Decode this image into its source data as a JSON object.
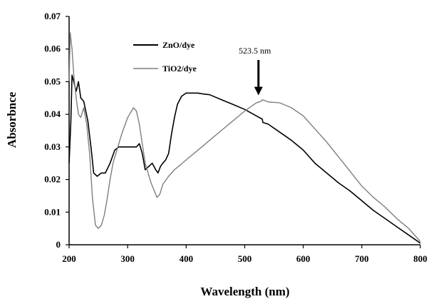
{
  "chart_data": {
    "type": "line",
    "xlabel": "Wavelength (nm)",
    "ylabel": "Absorbnce",
    "xlim": [
      200,
      800
    ],
    "ylim": [
      0,
      0.07
    ],
    "xticks": [
      "200",
      "300",
      "400",
      "500",
      "600",
      "700",
      "800"
    ],
    "yticks": [
      "0",
      "0.01",
      "0.02",
      "0.03",
      "0.04",
      "0.05",
      "0.06",
      "0.07"
    ],
    "grid": false,
    "legend_position": "top-center",
    "series": [
      {
        "name": "ZnO/dye",
        "color": "#000000",
        "x": [
          200,
          203,
          205,
          208,
          212,
          216,
          220,
          225,
          232,
          238,
          242,
          248,
          255,
          262,
          270,
          278,
          285,
          292,
          300,
          308,
          315,
          320,
          325,
          330,
          336,
          342,
          348,
          352,
          356,
          360,
          365,
          370,
          375,
          380,
          385,
          392,
          400,
          410,
          420,
          430,
          440,
          460,
          480,
          500,
          520,
          530,
          531,
          540,
          560,
          580,
          600,
          620,
          640,
          660,
          680,
          700,
          720,
          740,
          760,
          780,
          800
        ],
        "y": [
          0.025,
          0.038,
          0.052,
          0.05,
          0.047,
          0.05,
          0.045,
          0.044,
          0.038,
          0.029,
          0.022,
          0.021,
          0.022,
          0.022,
          0.025,
          0.029,
          0.03,
          0.03,
          0.03,
          0.03,
          0.03,
          0.031,
          0.028,
          0.023,
          0.024,
          0.025,
          0.023,
          0.022,
          0.024,
          0.025,
          0.026,
          0.028,
          0.034,
          0.039,
          0.043,
          0.0455,
          0.0465,
          0.0465,
          0.0465,
          0.0462,
          0.046,
          0.0445,
          0.043,
          0.0415,
          0.0395,
          0.0385,
          0.0375,
          0.037,
          0.0345,
          0.032,
          0.029,
          0.025,
          0.022,
          0.019,
          0.0165,
          0.0135,
          0.0105,
          0.008,
          0.0055,
          0.003,
          0.0005
        ]
      },
      {
        "name": "TiO2/dye",
        "color": "#7f7f7f",
        "x": [
          200,
          202,
          205,
          208,
          212,
          216,
          220,
          225,
          230,
          235,
          240,
          245,
          250,
          255,
          260,
          265,
          270,
          275,
          280,
          290,
          300,
          310,
          315,
          320,
          325,
          330,
          340,
          350,
          355,
          360,
          370,
          380,
          400,
          420,
          440,
          460,
          480,
          500,
          520,
          528,
          530,
          540,
          560,
          580,
          600,
          620,
          640,
          660,
          680,
          700,
          720,
          740,
          760,
          780,
          800
        ],
        "y": [
          0.05,
          0.065,
          0.06,
          0.052,
          0.045,
          0.04,
          0.039,
          0.042,
          0.037,
          0.028,
          0.014,
          0.006,
          0.005,
          0.006,
          0.009,
          0.014,
          0.02,
          0.025,
          0.028,
          0.034,
          0.039,
          0.042,
          0.041,
          0.037,
          0.031,
          0.025,
          0.019,
          0.0145,
          0.0155,
          0.0185,
          0.021,
          0.023,
          0.026,
          0.029,
          0.032,
          0.035,
          0.038,
          0.041,
          0.0435,
          0.044,
          0.0445,
          0.0438,
          0.0435,
          0.042,
          0.0395,
          0.0355,
          0.0315,
          0.027,
          0.0225,
          0.018,
          0.0145,
          0.0115,
          0.008,
          0.005,
          0.001
        ]
      }
    ],
    "annotations": [
      {
        "text": "523.5 nm",
        "x": 523.5,
        "y": 0.0445,
        "arrow": true
      }
    ]
  }
}
